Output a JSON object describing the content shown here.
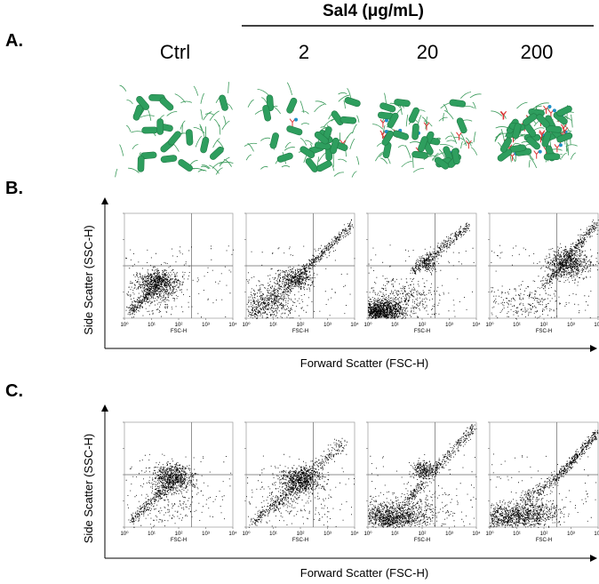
{
  "header": {
    "group_label": "Sal4 (μg/mL)",
    "columns": [
      "Ctrl",
      "2",
      "20",
      "200"
    ]
  },
  "panels": [
    {
      "label": "A."
    },
    {
      "label": "B.",
      "y_axis_label": "Side Scatter (SSC-H)",
      "x_axis_label": "Forward Scatter (FSC-H)"
    },
    {
      "label": "C.",
      "y_axis_label": "Side Scatter (SSC-H)",
      "x_axis_label": "Forward Scatter (FSC-H)"
    }
  ],
  "plot_axis": {
    "x_label": "FSC-H",
    "x_ticks": [
      "10⁰",
      "10¹",
      "10²",
      "10³",
      "10⁴"
    ]
  }
}
